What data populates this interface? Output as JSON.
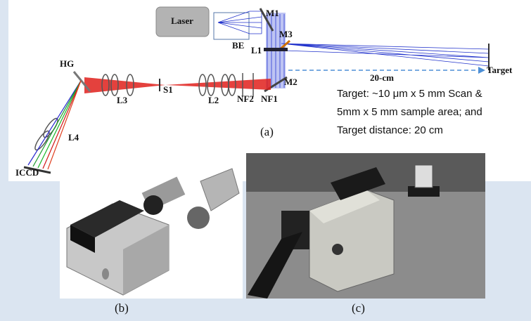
{
  "labels": {
    "laser": "Laser",
    "m1": "M1",
    "m3": "M3",
    "be": "BE",
    "l1": "L1",
    "distance": "20-cm",
    "target": "Target",
    "m2": "M2",
    "nf1": "NF1",
    "nf2": "NF2",
    "l2": "L2",
    "s1": "S1",
    "l3": "L3",
    "hg": "HG",
    "l4": "L4",
    "iccd": "ICCD"
  },
  "target_note": [
    "Target: ~10 μm x 5 mm Scan &",
    "5mm x 5 mm sample area; and",
    "Target  distance: 20 cm"
  ],
  "captions": {
    "a": "(a)",
    "b": "(b)",
    "c": "(c)"
  }
}
